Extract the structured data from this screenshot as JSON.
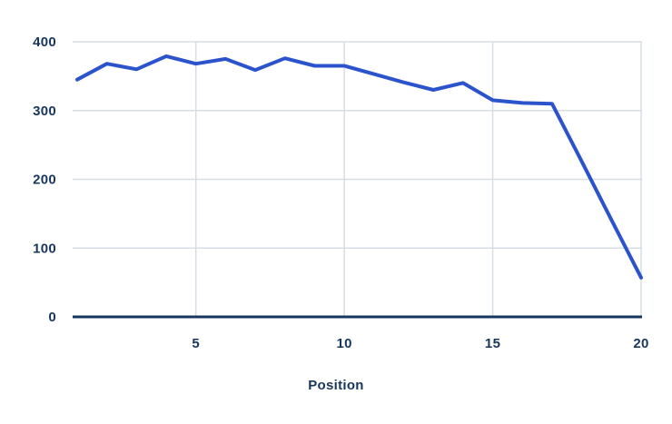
{
  "chart_data": {
    "type": "line",
    "title": "",
    "xlabel": "Position",
    "ylabel": "",
    "x": [
      1,
      2,
      3,
      4,
      5,
      6,
      7,
      8,
      9,
      10,
      11,
      12,
      13,
      14,
      15,
      16,
      17,
      18,
      19,
      20
    ],
    "values": [
      345,
      368,
      360,
      379,
      368,
      375,
      359,
      376,
      365,
      365,
      353,
      341,
      330,
      340,
      315,
      311,
      310,
      226,
      141,
      57
    ],
    "xticks": [
      5,
      10,
      15,
      20
    ],
    "yticks": [
      0,
      100,
      200,
      300,
      400
    ],
    "xlim": [
      1,
      20
    ],
    "ylim": [
      0,
      400
    ],
    "grid": true,
    "legend": false,
    "colors": {
      "line": "#2b53cb",
      "axis_text": "#17365d",
      "zero_axis": "#17365d",
      "grid": "#d7dde5",
      "background": "#ffffff"
    }
  }
}
